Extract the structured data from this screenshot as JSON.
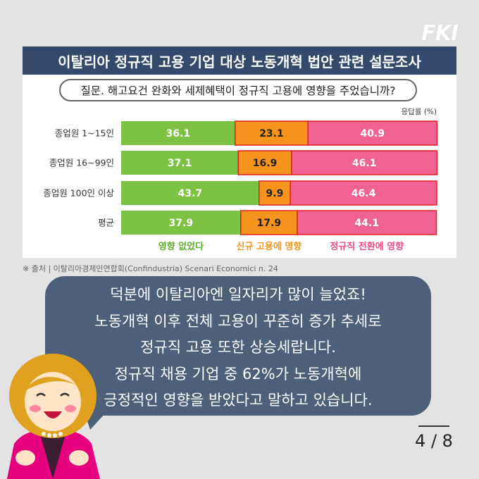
{
  "brand": {
    "logo_text": "FKI"
  },
  "header": {
    "title": "이탈리아 정규직 고용 기업 대상 노동개혁 법안 관련 설문조사",
    "question": "질문. 해고요건 완화와 세제혜택이 정규직 고용에 영향을 주었습니까?",
    "unit": "응답률 (%)"
  },
  "chart_data": {
    "type": "bar",
    "stacked": true,
    "orientation": "horizontal",
    "title": "이탈리아 정규직 고용 기업 대상 노동개혁 법안 관련 설문조사",
    "unit": "응답률 (%)",
    "categories": [
      "종업원 1~15인",
      "종업원 16~99인",
      "종업원 100인 이상",
      "평균"
    ],
    "series": [
      {
        "name": "영향 없었다",
        "color": "#7dc242",
        "values": [
          36.1,
          37.1,
          43.7,
          37.9
        ]
      },
      {
        "name": "신규 고용에 영향",
        "color": "#f7941d",
        "values": [
          23.1,
          16.9,
          9.9,
          17.9
        ]
      },
      {
        "name": "정규직 전환에 영향",
        "color": "#f06292",
        "values": [
          40.9,
          46.1,
          46.4,
          44.1
        ]
      }
    ],
    "xlim": [
      0,
      100
    ],
    "legend_position": "bottom",
    "grid": false
  },
  "source": "※ 출처 | 이탈리아경제인연합회(Confindustria) Scenari Economici n. 24",
  "bubble": {
    "lines": [
      "덕분에 이탈리아엔 일자리가 많이 늘었죠!",
      "노동개혁 이후 전체 고용이 꾸준히 증가 추세로",
      "정규직 고용 또한 상승세랍니다.",
      "정규직 채용 기업 중 62%가 노동개혁에",
      "긍정적인 영향을 받았다고 말하고 있습니다."
    ]
  },
  "pagination": {
    "label": "4 / 8"
  },
  "colors": {
    "title_bar": "#34496b",
    "bubble": "#4e5f79",
    "background": "#e3e3e3",
    "outline_red": "#e02020"
  }
}
